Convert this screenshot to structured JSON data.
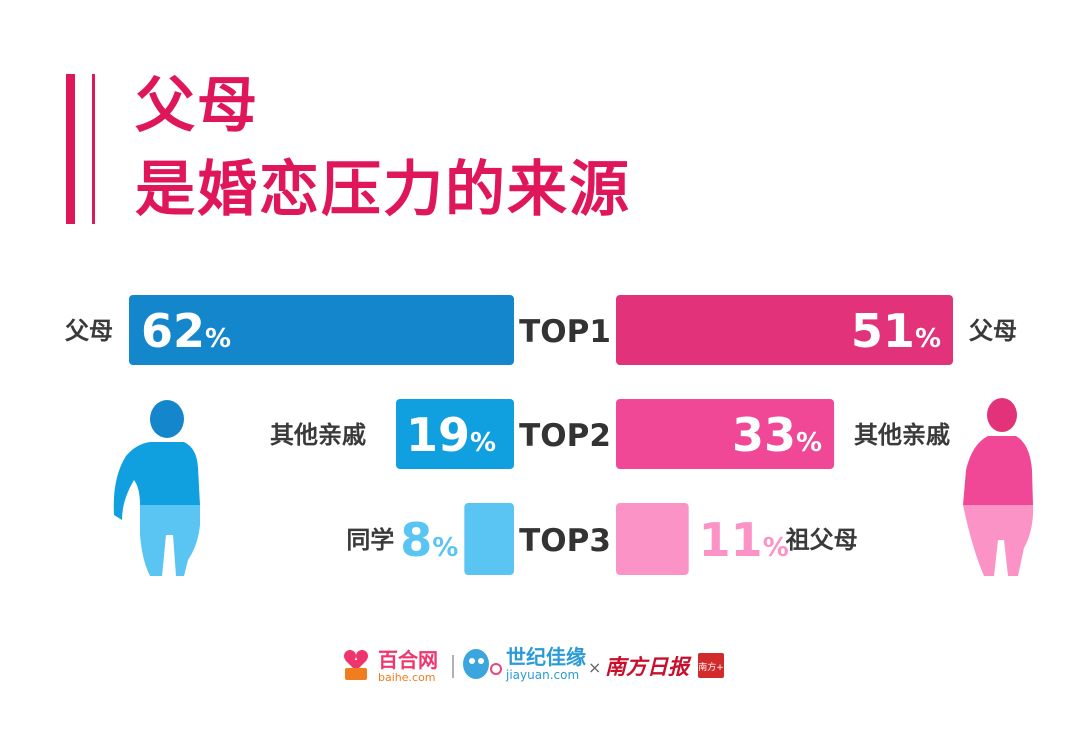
{
  "title": {
    "line1": "父母",
    "line2": "是婚恋压力的来源"
  },
  "colors": {
    "accent": "#e0165b",
    "left": [
      "#1487cc",
      "#10a0e0",
      "#5ac4f2"
    ],
    "right": [
      "#e2337a",
      "#f04896",
      "#fb93c6"
    ],
    "label": "#3a3a3a"
  },
  "chart_data": [
    {
      "type": "bar",
      "orientation": "horizontal",
      "categories": [
        "TOP1",
        "TOP2",
        "TOP3"
      ],
      "labels": [
        "父母",
        "其他亲戚",
        "同学"
      ],
      "values": [
        62,
        19,
        8
      ],
      "unit": "%"
    },
    {
      "type": "bar",
      "orientation": "horizontal",
      "categories": [
        "TOP1",
        "TOP2",
        "TOP3"
      ],
      "labels": [
        "父母",
        "其他亲戚",
        "祖父母"
      ],
      "values": [
        51,
        33,
        11
      ],
      "unit": "%"
    }
  ],
  "footer": {
    "baihe_name": "百合网",
    "baihe_url": "baihe.com",
    "jiayuan_name": "世纪佳缘",
    "jiayuan_url": "jiayuan.com",
    "times": "×",
    "newspaper": "南方日报",
    "seal": "南方+"
  }
}
